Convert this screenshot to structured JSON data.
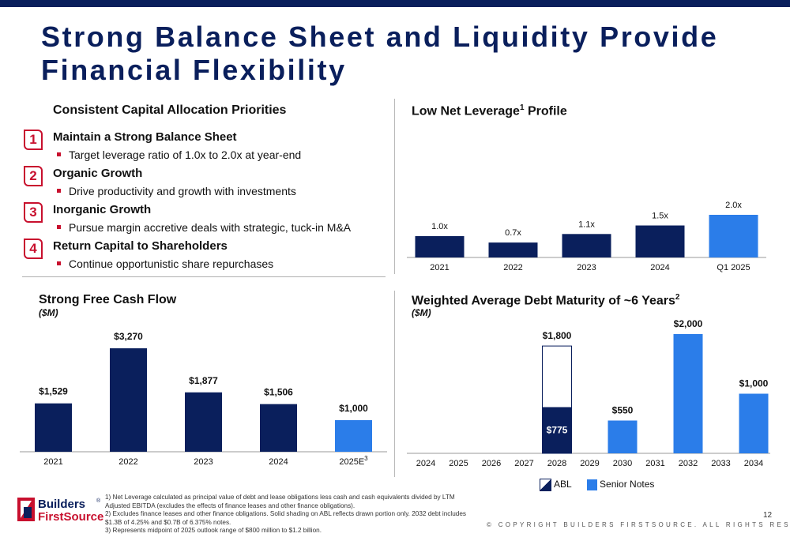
{
  "title": "Strong Balance Sheet and Liquidity Provide Financial Flexibility",
  "capital_allocation": {
    "heading": "Consistent Capital Allocation Priorities",
    "items": [
      {
        "num": "1",
        "title": "Maintain a Strong Balance Sheet",
        "bullet": "Target leverage ratio of 1.0x to 2.0x at year-end"
      },
      {
        "num": "2",
        "title": "Organic Growth",
        "bullet": "Drive productivity and growth with investments"
      },
      {
        "num": "3",
        "title": "Inorganic Growth",
        "bullet": "Pursue margin accretive deals with strategic, tuck-in M&A"
      },
      {
        "num": "4",
        "title": "Return Capital to Shareholders",
        "bullet": "Continue opportunistic share repurchases"
      }
    ]
  },
  "leverage": {
    "heading": "Low Net Leverage",
    "sup": "1",
    "heading_tail": " Profile"
  },
  "fcf": {
    "heading": "Strong Free Cash Flow",
    "sub": "($M)"
  },
  "maturity": {
    "heading": "Weighted Average Debt Maturity of ~6 Years",
    "sup": "2",
    "sub": "($M)"
  },
  "legend": {
    "abl": "ABL",
    "senior": "Senior Notes"
  },
  "footnotes": [
    "1) Net Leverage calculated as principal value of debt and lease obligations less cash and cash equivalents divided by LTM Adjusted EBITDA (excludes the effects of finance leases and other finance obligations).",
    "2) Excludes finance leases and other finance obligations. Solid shading on ABL reflects drawn portion only. 2032 debt includes $1.3B of 4.25% and $0.7B of 6.375% notes.",
    "3) Represents midpoint of 2025 outlook range of $800 million to $1.2 billion."
  ],
  "logo": {
    "line1": "Builders",
    "reg": "®",
    "line2": "FirstSource"
  },
  "copyright": "© COPYRIGHT BUILDERS FIRSTSOURCE. ALL RIGHTS RESERVED.",
  "page_number": "12",
  "colors": {
    "navy": "#0a1f5c",
    "blue": "#2b7de9",
    "red": "#c8102e"
  },
  "chart_data": [
    {
      "id": "leverage",
      "type": "bar",
      "categories": [
        "2021",
        "2022",
        "2023",
        "2024",
        "Q1 2025"
      ],
      "values": [
        1.0,
        0.7,
        1.1,
        1.5,
        2.0
      ],
      "labels": [
        "1.0x",
        "0.7x",
        "1.1x",
        "1.5x",
        "2.0x"
      ],
      "colors": [
        "#0a1f5c",
        "#0a1f5c",
        "#0a1f5c",
        "#0a1f5c",
        "#2b7de9"
      ],
      "ylim": [
        0,
        2.0
      ]
    },
    {
      "id": "fcf",
      "type": "bar",
      "categories": [
        "2021",
        "2022",
        "2023",
        "2024",
        "2025E"
      ],
      "category_sup": [
        "",
        "",
        "",
        "",
        "3"
      ],
      "values": [
        1529,
        3270,
        1877,
        1506,
        1000
      ],
      "labels": [
        "$1,529",
        "$3,270",
        "$1,877",
        "$1,506",
        "$1,000"
      ],
      "colors": [
        "#0a1f5c",
        "#0a1f5c",
        "#0a1f5c",
        "#0a1f5c",
        "#2b7de9"
      ],
      "ylim": [
        0,
        3270
      ]
    },
    {
      "id": "maturity",
      "type": "bar",
      "categories": [
        "2024",
        "2025",
        "2026",
        "2027",
        "2028",
        "2029",
        "2030",
        "2031",
        "2032",
        "2033",
        "2034"
      ],
      "series": [
        {
          "name": "ABL",
          "capacity": {
            "2028": 1800
          },
          "drawn": {
            "2028": 775
          }
        },
        {
          "name": "Senior Notes",
          "values": {
            "2030": 550,
            "2032": 2000,
            "2034": 1000
          }
        }
      ],
      "labels": {
        "2028": "$1,800",
        "2028_drawn": "$775",
        "2030": "$550",
        "2032": "$2,000",
        "2034": "$1,000"
      },
      "ylim": [
        0,
        2000
      ]
    }
  ]
}
